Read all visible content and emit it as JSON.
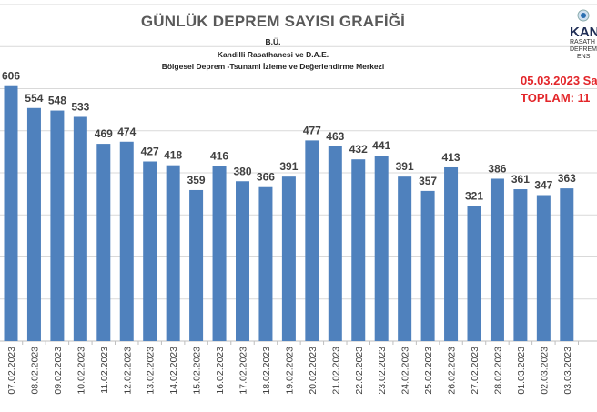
{
  "chart_data": {
    "type": "bar",
    "title": "GÜNLÜK  DEPREM SAYISI GRAFİĞİ",
    "subtitle_lines": [
      "B.Ü.",
      "Kandilli Rasathanesi ve D.A.E.",
      "Bölgesel Deprem -Tsunami İzleme ve Değerlendirme Merkezi"
    ],
    "categories": [
      "07.02.2023",
      "08.02.2023",
      "09.02.2023",
      "10.02.2023",
      "11.02.2023",
      "12.02.2023",
      "13.02.2023",
      "14.02.2023",
      "15.02.2023",
      "16.02.2023",
      "17.02.2023",
      "18.02.2023",
      "19.02.2023",
      "20.02.2023",
      "21.02.2023",
      "22.02.2023",
      "23.02.2023",
      "24.02.2023",
      "25.02.2023",
      "26.02.2023",
      "27.02.2023",
      "28.02.2023",
      "01.03.2023",
      "02.03.2023",
      "03.03.2023"
    ],
    "values": [
      606,
      554,
      548,
      533,
      469,
      474,
      427,
      418,
      359,
      416,
      380,
      366,
      391,
      477,
      463,
      432,
      441,
      391,
      357,
      413,
      321,
      386,
      361,
      347,
      363
    ],
    "ylim": [
      0,
      800
    ],
    "grid": true,
    "bar_color": "#4f81bd",
    "annotations": [
      "05.03.2023 Sa",
      "TOPLAM:  11"
    ],
    "annotation_color": "#e3262a"
  },
  "logo": {
    "text": "KAN",
    "lines": [
      "RASATH",
      "DEPREM",
      "ENS"
    ]
  }
}
